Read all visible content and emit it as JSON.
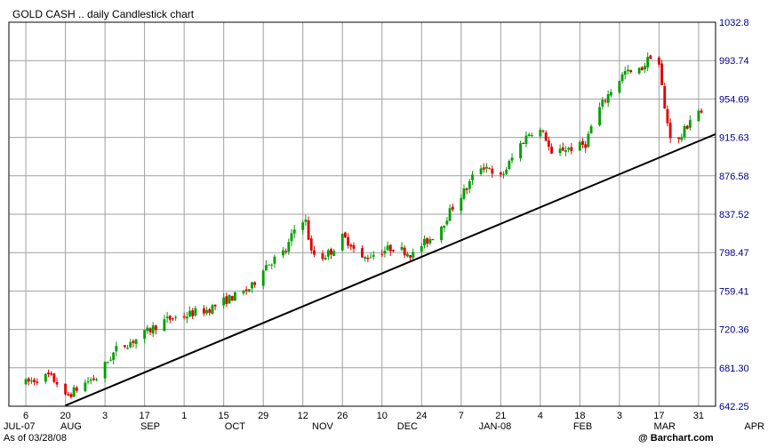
{
  "chart_data": {
    "type": "candlestick",
    "title": "GOLD CASH .. daily Candlestick chart",
    "as_of": "As of 03/28/08",
    "brand": "@ Barchart.com",
    "ylim": [
      642.25,
      1032.8
    ],
    "yticks": [
      "642.25",
      "681.30",
      "720.36",
      "759.41",
      "798.47",
      "837.52",
      "876.58",
      "915.63",
      "954.69",
      "993.74",
      "1032.8"
    ],
    "xticks": [
      {
        "day": 0,
        "label": "6"
      },
      {
        "day": 14,
        "label": "20"
      },
      {
        "day": 28,
        "label": "3"
      },
      {
        "day": 42,
        "label": "17"
      },
      {
        "day": 56,
        "label": "1"
      },
      {
        "day": 70,
        "label": "15"
      },
      {
        "day": 84,
        "label": "29"
      },
      {
        "day": 98,
        "label": "12"
      },
      {
        "day": 112,
        "label": "26"
      },
      {
        "day": 126,
        "label": "10"
      },
      {
        "day": 140,
        "label": "24"
      },
      {
        "day": 154,
        "label": "7"
      },
      {
        "day": 168,
        "label": "21"
      },
      {
        "day": 182,
        "label": "4"
      },
      {
        "day": 196,
        "label": "18"
      },
      {
        "day": 210,
        "label": "3"
      },
      {
        "day": 224,
        "label": "17"
      },
      {
        "day": 238,
        "label": "31"
      }
    ],
    "months": [
      {
        "day": 0,
        "label": "JUL-07"
      },
      {
        "day": 16,
        "label": "AUG"
      },
      {
        "day": 44,
        "label": "SEP"
      },
      {
        "day": 74,
        "label": "OCT"
      },
      {
        "day": 105,
        "label": "NOV"
      },
      {
        "day": 135,
        "label": "DEC"
      },
      {
        "day": 166,
        "label": "JAN-08"
      },
      {
        "day": 197,
        "label": "FEB"
      },
      {
        "day": 226,
        "label": "MAR"
      },
      {
        "day": 257,
        "label": "APR"
      }
    ],
    "xlim": [
      -6,
      244
    ],
    "trendline": [
      {
        "day": 14,
        "price": 643
      },
      {
        "day": 244,
        "price": 919
      }
    ],
    "colors": {
      "up": "#00a000",
      "down": "#e00000",
      "grid": "#a0a0a0",
      "axis_text": "#000080",
      "trend": "#000000"
    },
    "series": [
      {
        "day": 0,
        "price": 666
      },
      {
        "day": 4,
        "price": 670
      },
      {
        "day": 8,
        "price": 673
      },
      {
        "day": 12,
        "price": 664
      },
      {
        "day": 14,
        "price": 651
      },
      {
        "day": 18,
        "price": 660
      },
      {
        "day": 22,
        "price": 668
      },
      {
        "day": 26,
        "price": 672
      },
      {
        "day": 28,
        "price": 684
      },
      {
        "day": 32,
        "price": 700
      },
      {
        "day": 36,
        "price": 706
      },
      {
        "day": 40,
        "price": 712
      },
      {
        "day": 44,
        "price": 720
      },
      {
        "day": 48,
        "price": 728
      },
      {
        "day": 52,
        "price": 732
      },
      {
        "day": 56,
        "price": 734
      },
      {
        "day": 60,
        "price": 738
      },
      {
        "day": 64,
        "price": 740
      },
      {
        "day": 68,
        "price": 746
      },
      {
        "day": 72,
        "price": 752
      },
      {
        "day": 76,
        "price": 756
      },
      {
        "day": 80,
        "price": 764
      },
      {
        "day": 84,
        "price": 784
      },
      {
        "day": 88,
        "price": 792
      },
      {
        "day": 92,
        "price": 800
      },
      {
        "day": 95,
        "price": 822
      },
      {
        "day": 97,
        "price": 836
      },
      {
        "day": 99,
        "price": 830
      },
      {
        "day": 101,
        "price": 798
      },
      {
        "day": 105,
        "price": 794
      },
      {
        "day": 108,
        "price": 800
      },
      {
        "day": 112,
        "price": 814
      },
      {
        "day": 115,
        "price": 808
      },
      {
        "day": 118,
        "price": 790
      },
      {
        "day": 122,
        "price": 796
      },
      {
        "day": 126,
        "price": 800
      },
      {
        "day": 130,
        "price": 804
      },
      {
        "day": 134,
        "price": 800
      },
      {
        "day": 138,
        "price": 795
      },
      {
        "day": 140,
        "price": 806
      },
      {
        "day": 144,
        "price": 815
      },
      {
        "day": 148,
        "price": 830
      },
      {
        "day": 152,
        "price": 850
      },
      {
        "day": 156,
        "price": 864
      },
      {
        "day": 160,
        "price": 886
      },
      {
        "day": 164,
        "price": 886
      },
      {
        "day": 166,
        "price": 866
      },
      {
        "day": 170,
        "price": 884
      },
      {
        "day": 174,
        "price": 905
      },
      {
        "day": 178,
        "price": 920
      },
      {
        "day": 181,
        "price": 926
      },
      {
        "day": 184,
        "price": 915
      },
      {
        "day": 186,
        "price": 896
      },
      {
        "day": 190,
        "price": 904
      },
      {
        "day": 194,
        "price": 905
      },
      {
        "day": 198,
        "price": 909
      },
      {
        "day": 201,
        "price": 935
      },
      {
        "day": 204,
        "price": 950
      },
      {
        "day": 208,
        "price": 968
      },
      {
        "day": 212,
        "price": 982
      },
      {
        "day": 216,
        "price": 980
      },
      {
        "day": 219,
        "price": 990
      },
      {
        "day": 222,
        "price": 1004
      },
      {
        "day": 224,
        "price": 990
      },
      {
        "day": 226,
        "price": 944
      },
      {
        "day": 228,
        "price": 918
      },
      {
        "day": 231,
        "price": 912
      },
      {
        "day": 234,
        "price": 928
      },
      {
        "day": 237,
        "price": 948
      },
      {
        "day": 239,
        "price": 938
      }
    ]
  }
}
